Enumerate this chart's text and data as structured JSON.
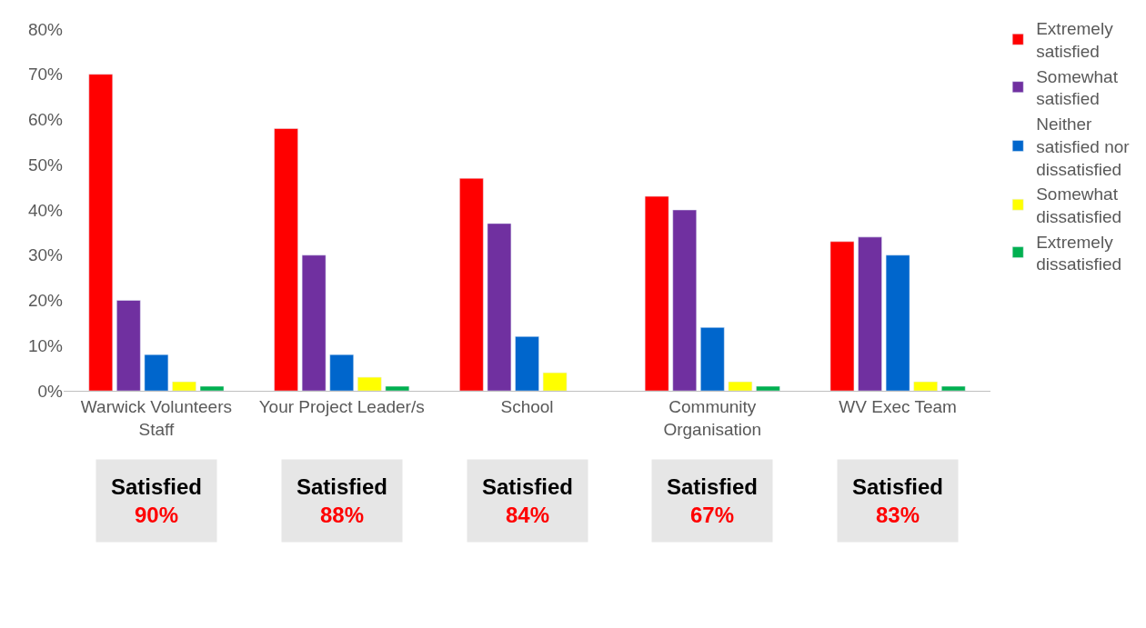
{
  "chart_data": {
    "type": "bar",
    "categories": [
      "Warwick Volunteers Staff",
      "Your Project Leader/s",
      "School",
      "Community Organisation",
      "WV Exec Team"
    ],
    "series": [
      {
        "name": "Extremely satisfied",
        "color": "#ff0000",
        "values": [
          70,
          58,
          47,
          43,
          33
        ]
      },
      {
        "name": "Somewhat satisfied",
        "color": "#7030a0",
        "values": [
          20,
          30,
          37,
          40,
          34
        ]
      },
      {
        "name": "Neither satisfied nor dissatisfied",
        "color": "#0066cc",
        "values": [
          8,
          8,
          12,
          14,
          30
        ]
      },
      {
        "name": "Somewhat dissatisfied",
        "color": "#ffff00",
        "values": [
          2,
          3,
          4,
          2,
          2
        ]
      },
      {
        "name": "Extremely dissatisfied",
        "color": "#00b050",
        "values": [
          1,
          1,
          null,
          1,
          1
        ]
      }
    ],
    "ylim": [
      0,
      80
    ],
    "yticks": [
      {
        "value": 0,
        "label": "0%"
      },
      {
        "value": 10,
        "label": "10%"
      },
      {
        "value": 20,
        "label": "20%"
      },
      {
        "value": 30,
        "label": "30%"
      },
      {
        "value": 40,
        "label": "40%"
      },
      {
        "value": 50,
        "label": "50%"
      },
      {
        "value": 60,
        "label": "60%"
      },
      {
        "value": 70,
        "label": "70%"
      },
      {
        "value": 80,
        "label": "80%"
      }
    ],
    "legend": "right",
    "annotations": [
      "Satisfied\n90%",
      "Satisfied\n88%",
      "Satisfied\n84%",
      "Satisfied\n67%",
      "Satisfied\n83%"
    ]
  }
}
